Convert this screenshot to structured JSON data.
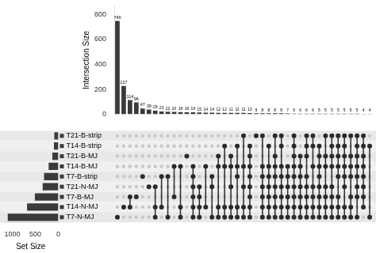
{
  "chart_data": [
    {
      "type": "bar",
      "ylabel": "Intersection Size",
      "categories": [
        null,
        null,
        null,
        null,
        null,
        null,
        null,
        null,
        null,
        null,
        null,
        null,
        null,
        null,
        null,
        null,
        null,
        null,
        null,
        null,
        null,
        null,
        null,
        null,
        null,
        null,
        null,
        null,
        null,
        null,
        null,
        null,
        null,
        null,
        null,
        null,
        null,
        null,
        null,
        null,
        null
      ],
      "values": [
        749,
        227,
        114,
        96,
        47,
        39,
        29,
        23,
        22,
        20,
        18,
        16,
        16,
        15,
        14,
        14,
        12,
        12,
        11,
        11,
        11,
        10,
        9,
        8,
        8,
        8,
        8,
        7,
        6,
        6,
        6,
        6,
        5,
        5,
        5,
        5,
        5,
        5,
        5,
        4,
        4
      ],
      "color": "#3a3a3a",
      "ylim": [
        0,
        870
      ],
      "yticks": [
        0,
        200,
        400,
        600,
        800
      ],
      "grid": false,
      "data_labels": true
    },
    {
      "type": "bar",
      "orientation": "horizontal",
      "xlabel": "Set Size",
      "categories": [
        "T21-B-strip",
        "T14-B-strip",
        "T21-B-MJ",
        "T14-B-MJ",
        "T7-B-strip",
        "T21-N-MJ",
        "T7-B-MJ",
        "T14-N-MJ",
        "T7-N-MJ"
      ],
      "values": [
        86,
        95,
        130,
        210,
        310,
        340,
        510,
        680,
        1100
      ],
      "color": "#3a3a3a",
      "xlim": [
        1200,
        0
      ],
      "xticks": [
        1000,
        500,
        0
      ],
      "grid": false
    },
    {
      "type": "matrix",
      "intersections": [
        [
          8
        ],
        [
          7
        ],
        [
          6,
          7
        ],
        [
          6
        ],
        [
          4
        ],
        [
          5
        ],
        [
          5,
          7,
          8
        ],
        [
          4,
          7
        ],
        [
          4,
          8
        ],
        [
          3,
          6
        ],
        [
          3,
          7,
          8
        ],
        [
          2
        ],
        [
          3,
          4,
          5,
          6,
          7,
          8
        ],
        [
          5,
          6,
          7,
          8
        ],
        [
          3,
          7
        ],
        [
          4,
          5,
          8
        ],
        [
          2,
          3,
          7,
          8
        ],
        [
          1,
          3,
          7,
          8
        ],
        [
          2,
          3,
          5,
          7,
          8
        ],
        [
          1,
          3,
          4,
          7,
          8
        ],
        [
          0,
          3,
          5,
          7,
          8
        ],
        [
          1,
          2,
          3,
          4,
          5,
          6,
          7,
          8
        ],
        [
          0
        ],
        [
          0,
          3,
          4,
          5,
          6,
          7,
          8
        ],
        [
          1,
          3,
          4,
          5,
          6,
          7,
          8
        ],
        [
          0,
          2,
          3,
          4,
          5,
          6,
          7,
          8
        ],
        [
          0,
          1,
          3,
          4,
          5,
          6,
          7,
          8
        ],
        [
          3,
          4,
          5,
          6,
          7,
          8
        ],
        [
          0,
          1,
          2,
          3,
          4,
          5,
          6,
          7,
          8
        ],
        [
          2,
          3,
          4,
          5,
          6,
          7,
          8
        ],
        [
          0,
          1,
          2,
          4,
          5,
          6,
          7,
          8
        ],
        [
          0,
          1,
          3,
          5,
          6,
          7,
          8
        ],
        [
          1,
          2,
          3,
          4,
          5,
          6,
          7,
          8
        ],
        [
          0,
          2,
          3,
          5,
          6,
          7,
          8
        ],
        [
          0,
          1,
          2,
          3,
          5,
          6,
          7,
          8
        ],
        [
          0,
          1,
          2,
          3,
          4,
          6,
          7,
          8
        ],
        [
          0,
          1,
          2,
          3,
          4,
          5,
          7,
          8
        ],
        [
          0,
          2,
          3,
          4,
          6,
          7,
          8
        ],
        [
          0,
          1,
          2,
          3,
          4,
          5,
          6,
          8
        ],
        [
          0,
          1,
          2,
          3,
          4,
          5,
          6,
          7
        ],
        [
          1,
          8
        ]
      ],
      "color": "#2a2a2a"
    }
  ]
}
